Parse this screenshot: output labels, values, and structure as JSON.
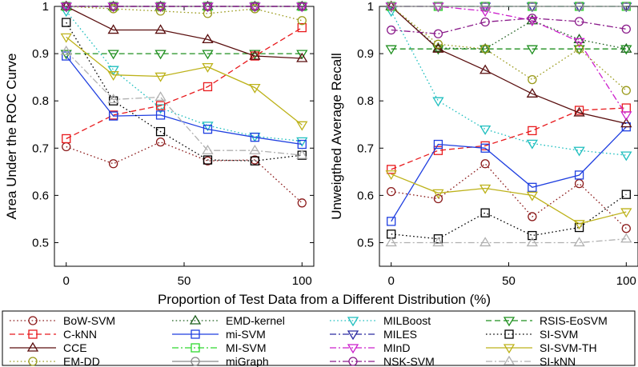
{
  "figure": {
    "shared_xlabel": "Proportion of Test Data from a Different Distribution (%)"
  },
  "chart_data": [
    {
      "type": "line",
      "ylabel": "Area Under the ROC Curve",
      "xlabel": "",
      "xlim": [
        -5,
        105
      ],
      "ylim": [
        0.45,
        1.0
      ],
      "xticks": [
        0,
        50,
        100
      ],
      "yticks": [
        0.5,
        0.6,
        0.7,
        0.8,
        0.9,
        1.0
      ],
      "ytick_labels": [
        "0.5",
        "0.6",
        "0.7",
        "0.8",
        "0.9",
        "1"
      ],
      "x": [
        0,
        20,
        40,
        60,
        80,
        100
      ],
      "series": [
        {
          "key": "bow-svm",
          "values": [
            0.703,
            0.667,
            0.713,
            0.673,
            0.675,
            0.584
          ]
        },
        {
          "key": "emd-kernel",
          "values": [
            1.0,
            1.0,
            1.0,
            1.0,
            1.0,
            1.0
          ]
        },
        {
          "key": "milboost",
          "values": [
            0.99,
            0.866,
            0.785,
            0.748,
            0.725,
            0.715
          ]
        },
        {
          "key": "rsis-eosvm",
          "values": [
            0.9,
            0.9,
            0.9,
            0.9,
            0.9,
            0.9
          ]
        },
        {
          "key": "c-knn",
          "values": [
            0.72,
            0.77,
            0.79,
            0.83,
            0.895,
            0.955
          ]
        },
        {
          "key": "mi-svm",
          "values": [
            0.895,
            0.768,
            0.77,
            0.74,
            0.723,
            0.708
          ]
        },
        {
          "key": "miles",
          "values": [
            1.0,
            1.0,
            1.0,
            1.0,
            1.0,
            1.0
          ]
        },
        {
          "key": "si-svm",
          "values": [
            0.966,
            0.8,
            0.735,
            0.675,
            0.673,
            0.685
          ]
        },
        {
          "key": "cce",
          "values": [
            1.0,
            0.95,
            0.95,
            0.93,
            0.895,
            0.89
          ]
        },
        {
          "key": "mi-svm-upper",
          "values": [
            1.0,
            1.0,
            1.0,
            1.0,
            1.0,
            1.0
          ]
        },
        {
          "key": "mind",
          "values": [
            1.0,
            1.0,
            1.0,
            1.0,
            1.0,
            1.0
          ]
        },
        {
          "key": "si-svm-th",
          "values": [
            0.935,
            0.855,
            0.852,
            0.872,
            0.828,
            0.749
          ]
        },
        {
          "key": "em-dd",
          "values": [
            1.0,
            0.995,
            0.99,
            0.985,
            0.995,
            0.97
          ]
        },
        {
          "key": "migraph",
          "values": [
            1.0,
            1.0,
            1.0,
            1.0,
            1.0,
            1.0
          ]
        },
        {
          "key": "nsk-svm",
          "values": [
            1.0,
            1.0,
            1.0,
            1.0,
            1.0,
            1.0
          ]
        },
        {
          "key": "si-knn",
          "values": [
            0.905,
            0.803,
            0.808,
            0.695,
            0.695,
            0.685
          ]
        }
      ]
    },
    {
      "type": "line",
      "ylabel": "Unweigthed Average Recall",
      "xlabel": "",
      "xlim": [
        -5,
        105
      ],
      "ylim": [
        0.45,
        1.0
      ],
      "xticks": [
        0,
        50,
        100
      ],
      "yticks": [
        0.5,
        0.6,
        0.7,
        0.8,
        0.9,
        1.0
      ],
      "ytick_labels": [
        "0.5",
        "0.6",
        "0.7",
        "0.8",
        "0.9",
        "1"
      ],
      "x": [
        0,
        20,
        40,
        60,
        80,
        100
      ],
      "series": [
        {
          "key": "bow-svm",
          "values": [
            0.608,
            0.593,
            0.667,
            0.555,
            0.625,
            0.53
          ]
        },
        {
          "key": "emd-kernel",
          "values": [
            1.0,
            0.912,
            0.91,
            0.97,
            0.93,
            0.91
          ]
        },
        {
          "key": "milboost",
          "values": [
            0.99,
            0.8,
            0.74,
            0.71,
            0.695,
            0.685
          ]
        },
        {
          "key": "rsis-eosvm",
          "values": [
            0.91,
            0.91,
            0.91,
            0.91,
            0.91,
            0.91
          ]
        },
        {
          "key": "c-knn",
          "values": [
            0.655,
            0.695,
            0.705,
            0.737,
            0.78,
            0.785
          ]
        },
        {
          "key": "mi-svm",
          "values": [
            0.545,
            0.708,
            0.7,
            0.617,
            0.643,
            0.745
          ]
        },
        {
          "key": "miles",
          "values": [
            1.0,
            1.0,
            1.0,
            1.0,
            1.0,
            1.0
          ]
        },
        {
          "key": "si-svm",
          "values": [
            0.518,
            0.508,
            0.563,
            0.515,
            0.532,
            0.602
          ]
        },
        {
          "key": "cce",
          "values": [
            1.0,
            0.91,
            0.865,
            0.815,
            0.775,
            0.752
          ]
        },
        {
          "key": "mi-svm-upper",
          "values": [
            1.0,
            1.0,
            1.0,
            1.0,
            1.0,
            1.0
          ]
        },
        {
          "key": "mind",
          "values": [
            1.0,
            1.0,
            0.99,
            0.97,
            0.925,
            0.77
          ]
        },
        {
          "key": "si-svm-th",
          "values": [
            0.645,
            0.605,
            0.615,
            0.6,
            0.54,
            0.565
          ]
        },
        {
          "key": "em-dd",
          "values": [
            1.0,
            0.92,
            0.91,
            0.845,
            0.91,
            0.822
          ]
        },
        {
          "key": "migraph",
          "values": [
            1.0,
            1.0,
            1.0,
            1.0,
            1.0,
            1.0
          ]
        },
        {
          "key": "nsk-svm",
          "values": [
            0.95,
            0.942,
            0.967,
            0.975,
            0.968,
            0.952
          ]
        },
        {
          "key": "si-knn",
          "values": [
            0.5,
            0.5,
            0.5,
            0.5,
            0.5,
            0.508
          ]
        }
      ]
    }
  ],
  "legend": [
    {
      "key": "bow-svm",
      "label": "BoW-SVM",
      "color": "#8b1a1a",
      "dash": "dot",
      "marker": "circle"
    },
    {
      "key": "emd-kernel",
      "label": "EMD-kernel",
      "color": "#1f5f1f",
      "dash": "dot",
      "marker": "triangle-up"
    },
    {
      "key": "milboost",
      "label": "MILBoost",
      "color": "#1fbfbf",
      "dash": "dot",
      "marker": "triangle-down"
    },
    {
      "key": "rsis-eosvm",
      "label": "RSIS-EoSVM",
      "color": "#1f8f1f",
      "dash": "dash",
      "marker": "triangle-down"
    },
    {
      "key": "c-knn",
      "label": "C-kNN",
      "color": "#e8191c",
      "dash": "dash",
      "marker": "square"
    },
    {
      "key": "mi-svm",
      "label": "mi-SVM",
      "color": "#1f3fe0",
      "dash": "solid",
      "marker": "square"
    },
    {
      "key": "miles",
      "label": "MILES",
      "color": "#2a2aa0",
      "dash": "dashdot",
      "marker": "triangle-down"
    },
    {
      "key": "si-svm",
      "label": "SI-SVM",
      "color": "#000000",
      "dash": "dot",
      "marker": "square"
    },
    {
      "key": "cce",
      "label": "CCE",
      "color": "#5a0f0f",
      "dash": "solid",
      "marker": "triangle-up"
    },
    {
      "key": "mi-svm-upper",
      "label": "MI-SVM",
      "color": "#2ed82e",
      "dash": "dashdot",
      "marker": "square"
    },
    {
      "key": "mind",
      "label": "MInD",
      "color": "#cc20cc",
      "dash": "dashdot",
      "marker": "triangle-down"
    },
    {
      "key": "si-svm-th",
      "label": "SI-SVM-TH",
      "color": "#bdb21a",
      "dash": "solid",
      "marker": "triangle-down"
    },
    {
      "key": "em-dd",
      "label": "EM-DD",
      "color": "#9a9a1a",
      "dash": "dot",
      "marker": "circle"
    },
    {
      "key": "migraph",
      "label": "miGraph",
      "color": "#888888",
      "dash": "solid",
      "marker": "circle"
    },
    {
      "key": "nsk-svm",
      "label": "NSK-SVM",
      "color": "#8a1a8a",
      "dash": "dashdot",
      "marker": "circle"
    },
    {
      "key": "si-knn",
      "label": "SI-kNN",
      "color": "#b0b0b0",
      "dash": "dashdot",
      "marker": "triangle-up"
    }
  ]
}
